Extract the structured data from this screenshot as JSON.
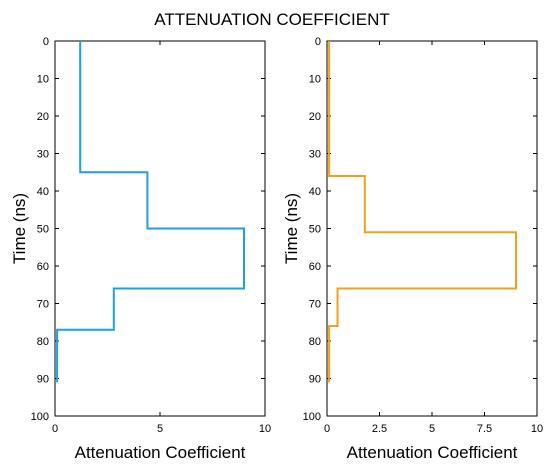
{
  "figure_title": "ATTENUATION COEFFICIENT",
  "chart_data": [
    {
      "type": "line",
      "xlabel": "Attenuation Coefficient",
      "ylabel": "Time (ns)",
      "xlim": [
        0,
        10
      ],
      "ylim": [
        0,
        100
      ],
      "y_inverted": true,
      "x_ticks": [
        0,
        5,
        10
      ],
      "x_tick_labels": [
        "0",
        "5",
        "10"
      ],
      "y_ticks": [
        0,
        10,
        20,
        30,
        40,
        50,
        60,
        70,
        80,
        90,
        100
      ],
      "y_tick_labels": [
        "0",
        "10",
        "20",
        "30",
        "40",
        "50",
        "60",
        "70",
        "80",
        "90",
        "100"
      ],
      "grid": false,
      "series": [
        {
          "color": "#1f9ee0",
          "step_profile": [
            {
              "x": 1.2,
              "y_from": 0,
              "y_to": 35
            },
            {
              "x": 4.4,
              "y_from": 35,
              "y_to": 50
            },
            {
              "x": 9.0,
              "y_from": 50,
              "y_to": 66
            },
            {
              "x": 2.8,
              "y_from": 66,
              "y_to": 77
            },
            {
              "x": 0.1,
              "y_from": 77,
              "y_to": 91
            }
          ]
        }
      ]
    },
    {
      "type": "line",
      "xlabel": "Attenuation Coefficient",
      "ylabel": "Time (ns)",
      "xlim": [
        0,
        10
      ],
      "ylim": [
        0,
        100
      ],
      "y_inverted": true,
      "x_ticks": [
        0,
        2.5,
        5,
        7.5,
        10
      ],
      "x_tick_labels": [
        "0",
        "2.5",
        "5",
        "7.5",
        "10"
      ],
      "y_ticks": [
        0,
        10,
        20,
        30,
        40,
        50,
        60,
        70,
        80,
        90,
        100
      ],
      "y_tick_labels": [
        "0",
        "10",
        "20",
        "30",
        "40",
        "50",
        "60",
        "70",
        "80",
        "90",
        "100"
      ],
      "grid": false,
      "series": [
        {
          "color": "#f0a020",
          "step_profile": [
            {
              "x": 0.1,
              "y_from": 0,
              "y_to": 36
            },
            {
              "x": 1.8,
              "y_from": 36,
              "y_to": 51
            },
            {
              "x": 9.0,
              "y_from": 51,
              "y_to": 66
            },
            {
              "x": 0.5,
              "y_from": 66,
              "y_to": 76
            },
            {
              "x": 0.1,
              "y_from": 76,
              "y_to": 91
            }
          ]
        }
      ]
    }
  ]
}
